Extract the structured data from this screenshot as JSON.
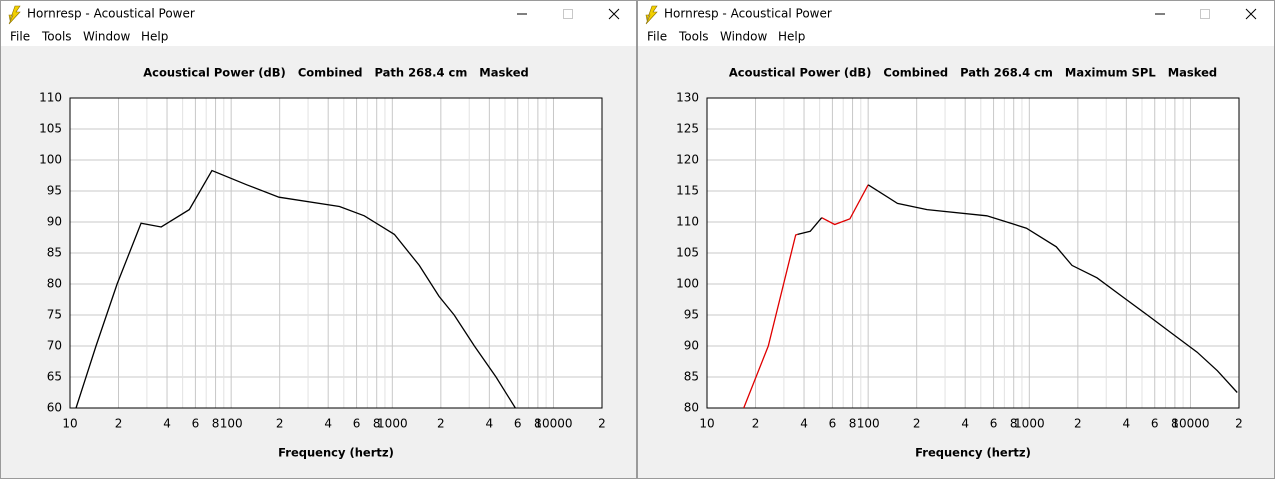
{
  "windows": [
    {
      "title": "Hornresp - Acoustical Power",
      "menu": [
        "File",
        "Tools",
        "Window",
        "Help"
      ]
    },
    {
      "title": "Hornresp - Acoustical Power",
      "menu": [
        "File",
        "Tools",
        "Window",
        "Help"
      ]
    }
  ],
  "chart_data": [
    {
      "type": "line",
      "title": "Acoustical Power (dB)   Combined   Path 268.4 cm   Masked",
      "x_label": "Frequency (hertz)",
      "x_log": true,
      "grid": true,
      "xlim": [
        10,
        20000
      ],
      "ylim": [
        60,
        110
      ],
      "xticks": [
        10,
        {
          "value": 20,
          "label": "2"
        },
        {
          "value": 40,
          "label": "4"
        },
        {
          "value": 60,
          "label": "6"
        },
        {
          "value": 80,
          "label": "8"
        },
        100,
        {
          "value": 200,
          "label": "2"
        },
        {
          "value": 400,
          "label": "4"
        },
        {
          "value": 600,
          "label": "6"
        },
        {
          "value": 800,
          "label": "8"
        },
        1000,
        {
          "value": 2000,
          "label": "2"
        },
        {
          "value": 4000,
          "label": "4"
        },
        {
          "value": 6000,
          "label": "6"
        },
        {
          "value": 8000,
          "label": "8"
        },
        10000,
        {
          "value": 20000,
          "label": "2"
        }
      ],
      "xminor_ticks": [
        30,
        50,
        70,
        90,
        300,
        500,
        700,
        900,
        3000,
        5000,
        7000,
        9000
      ],
      "yticks": [
        60,
        65,
        70,
        75,
        80,
        85,
        90,
        95,
        100,
        105,
        110
      ],
      "x": [
        10.9,
        14.5,
        19.6,
        27.6,
        36.8,
        55,
        76,
        125,
        198,
        470,
        670,
        1030,
        1470,
        1950,
        2420,
        3230,
        4400,
        5800
      ],
      "series": [
        {
          "color": "#000000",
          "values": [
            60,
            70,
            80,
            89.8,
            89.2,
            92,
            98.3,
            96,
            94,
            92.5,
            91,
            88,
            83,
            78,
            75,
            70,
            65,
            60
          ]
        }
      ]
    },
    {
      "type": "line",
      "title": "Acoustical Power (dB)   Combined   Path 268.4 cm   Maximum SPL   Masked",
      "x_label": "Frequency (hertz)",
      "x_log": true,
      "grid": true,
      "xlim": [
        10,
        20000
      ],
      "ylim": [
        80,
        130
      ],
      "xticks": [
        10,
        {
          "value": 20,
          "label": "2"
        },
        {
          "value": 40,
          "label": "4"
        },
        {
          "value": 60,
          "label": "6"
        },
        {
          "value": 80,
          "label": "8"
        },
        100,
        {
          "value": 200,
          "label": "2"
        },
        {
          "value": 400,
          "label": "4"
        },
        {
          "value": 600,
          "label": "6"
        },
        {
          "value": 800,
          "label": "8"
        },
        1000,
        {
          "value": 2000,
          "label": "2"
        },
        {
          "value": 4000,
          "label": "4"
        },
        {
          "value": 6000,
          "label": "6"
        },
        {
          "value": 8000,
          "label": "8"
        },
        10000,
        {
          "value": 20000,
          "label": "2"
        }
      ],
      "xminor_ticks": [
        30,
        50,
        70,
        90,
        300,
        500,
        700,
        900,
        3000,
        5000,
        7000,
        9000
      ],
      "yticks": [
        80,
        85,
        90,
        95,
        100,
        105,
        110,
        115,
        120,
        125,
        130
      ],
      "x": [
        16.9,
        24,
        35.5,
        36.5,
        43.7,
        51.5,
        62,
        77,
        100,
        152,
        232,
        545,
        960,
        1470,
        1840,
        2630,
        3760,
        5400,
        7700,
        11000,
        14700,
        19500
      ],
      "series": [
        {
          "color": "#e00000",
          "values": [
            80,
            90,
            107.9,
            108,
            null,
            110.7,
            109.6,
            110.5,
            116,
            null,
            null,
            null,
            null,
            null,
            null,
            null,
            null,
            null,
            null,
            null,
            null,
            null
          ]
        },
        {
          "color": "#000000",
          "values": [
            null,
            null,
            null,
            108,
            108.5,
            110.7,
            null,
            null,
            116,
            113,
            112,
            111,
            109,
            106,
            103,
            101,
            98,
            95,
            92,
            89,
            86,
            82.5
          ]
        }
      ]
    }
  ]
}
